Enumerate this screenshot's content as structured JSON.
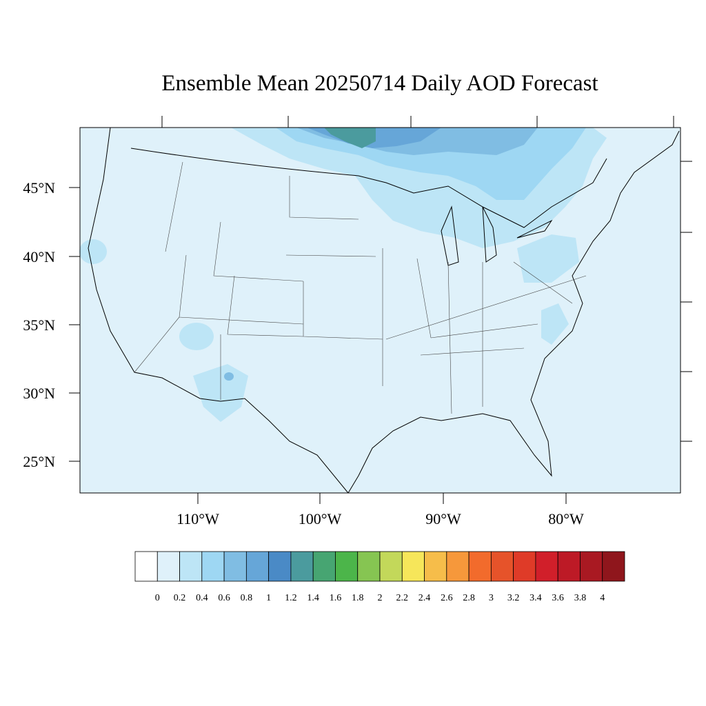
{
  "title": "Ensemble Mean 20250714 Daily AOD Forecast",
  "latitude_labels": [
    "45°N",
    "40°N",
    "35°N",
    "30°N",
    "25°N"
  ],
  "longitude_labels": [
    "110°W",
    "100°W",
    "90°W",
    "80°W"
  ],
  "colorbar": {
    "labels": [
      "0",
      "0.2",
      "0.4",
      "0.6",
      "0.8",
      "1",
      "1.2",
      "1.4",
      "1.6",
      "1.8",
      "2",
      "2.2",
      "2.4",
      "2.6",
      "2.8",
      "3",
      "3.2",
      "3.4",
      "3.6",
      "3.8",
      "4"
    ],
    "colors": [
      "#ffffff",
      "#dff1fa",
      "#bde5f6",
      "#9ed7f3",
      "#80bde3",
      "#66a6d8",
      "#4a8ac6",
      "#4b9b9e",
      "#47a572",
      "#4cb54a",
      "#86c552",
      "#c3d85a",
      "#f6e65a",
      "#f6bd4a",
      "#f6983b",
      "#f26b2c",
      "#e6532a",
      "#df3b28",
      "#d11f2a",
      "#bd1a26",
      "#a91922",
      "#8f161c"
    ]
  }
}
